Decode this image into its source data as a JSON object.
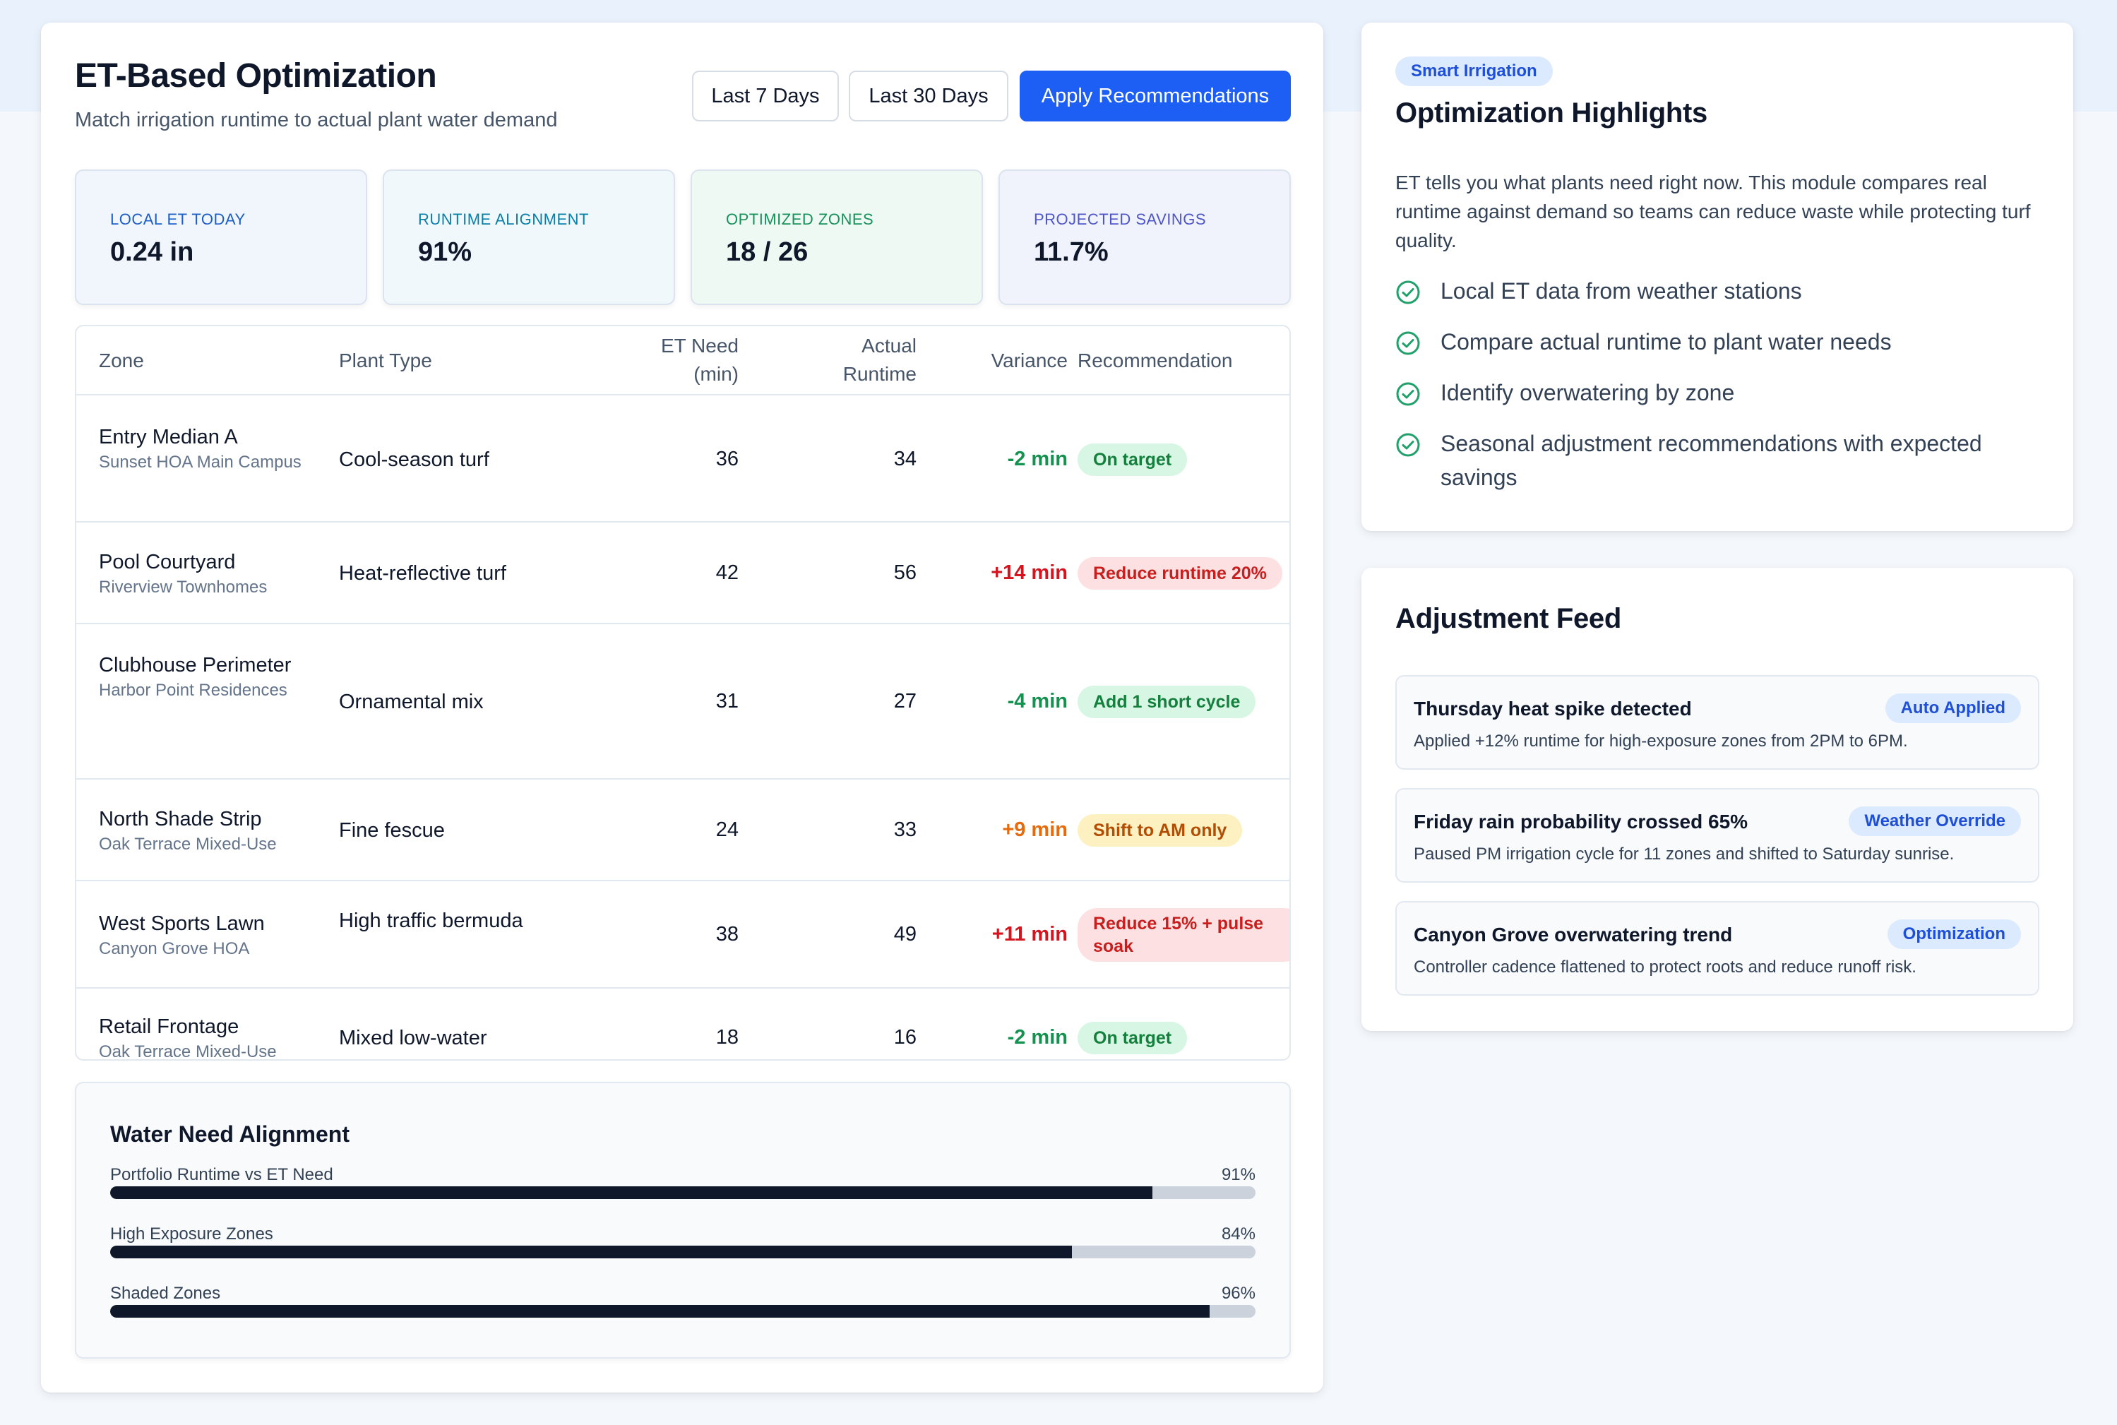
{
  "header": {
    "title": "ET-Based Optimization",
    "subtitle": "Match irrigation runtime to actual plant water demand",
    "buttons": {
      "last7": "Last 7 Days",
      "last30": "Last 30 Days",
      "apply": "Apply Recommendations"
    }
  },
  "stats": [
    {
      "label": "LOCAL ET TODAY",
      "value": "0.24 in"
    },
    {
      "label": "RUNTIME ALIGNMENT",
      "value": "91%"
    },
    {
      "label": "OPTIMIZED ZONES",
      "value": "18 / 26"
    },
    {
      "label": "PROJECTED SAVINGS",
      "value": "11.7%"
    }
  ],
  "table": {
    "headers": {
      "zone": "Zone",
      "plant": "Plant Type",
      "et_line1": "ET Need",
      "et_line2": "(min)",
      "runtime_line1": "Actual",
      "runtime_line2": "Runtime",
      "variance": "Variance",
      "recommendation": "Recommendation"
    },
    "rows": [
      {
        "zone": "Entry Median A",
        "site": "Sunset HOA Main Campus",
        "plant": "Cool-season turf",
        "et": "36",
        "runtime": "34",
        "variance": "-2 min",
        "variance_tone": "green",
        "rec": "On target",
        "rec_tone": "green"
      },
      {
        "zone": "Pool Courtyard",
        "site": "Riverview Townhomes",
        "plant": "Heat-reflective turf",
        "et": "42",
        "runtime": "56",
        "variance": "+14 min",
        "variance_tone": "red",
        "rec": "Reduce runtime 20%",
        "rec_tone": "red"
      },
      {
        "zone": "Clubhouse Perimeter",
        "site": "Harbor Point Residences",
        "plant": "Ornamental mix",
        "et": "31",
        "runtime": "27",
        "variance": "-4 min",
        "variance_tone": "green",
        "rec": "Add 1 short cycle",
        "rec_tone": "green"
      },
      {
        "zone": "North Shade Strip",
        "site": "Oak Terrace Mixed-Use",
        "plant": "Fine fescue",
        "et": "24",
        "runtime": "33",
        "variance": "+9 min",
        "variance_tone": "orange",
        "rec": "Shift to AM only",
        "rec_tone": "amber"
      },
      {
        "zone": "West Sports Lawn",
        "site": "Canyon Grove HOA",
        "plant": "High traffic bermuda",
        "et": "38",
        "runtime": "49",
        "variance": "+11 min",
        "variance_tone": "red",
        "rec": "Reduce 15% + pulse soak",
        "rec_tone": "red"
      },
      {
        "zone": "Retail Frontage",
        "site": "Oak Terrace Mixed-Use",
        "plant": "Mixed low-water",
        "et": "18",
        "runtime": "16",
        "variance": "-2 min",
        "variance_tone": "green",
        "rec": "On target",
        "rec_tone": "green"
      }
    ]
  },
  "alignment": {
    "title": "Water Need Alignment",
    "rows": [
      {
        "label": "Portfolio Runtime vs ET Need",
        "value": "91%",
        "fraction": 0.91
      },
      {
        "label": "High Exposure Zones",
        "value": "84%",
        "fraction": 0.84
      },
      {
        "label": "Shaded Zones",
        "value": "96%",
        "fraction": 0.96
      }
    ]
  },
  "highlights": {
    "chip": "Smart Irrigation",
    "title": "Optimization Highlights",
    "text": "ET tells you what plants need right now. This module compares real runtime against demand so teams can reduce waste while protecting turf quality.",
    "items": [
      "Local ET data from weather stations",
      "Compare actual runtime to plant water needs",
      "Identify overwatering by zone",
      "Seasonal adjustment recommendations with expected savings"
    ]
  },
  "feed": {
    "title": "Adjustment Feed",
    "items": [
      {
        "title": "Thursday heat spike detected",
        "tag": "Auto Applied",
        "body": "Applied +12% runtime for high-exposure zones from 2PM to 6PM."
      },
      {
        "title": "Friday rain probability crossed 65%",
        "tag": "Weather Override",
        "body": "Paused PM irrigation cycle for 11 zones and shifted to Saturday sunrise."
      },
      {
        "title": "Canyon Grove overwatering trend",
        "tag": "Optimization",
        "body": "Controller cadence flattened to protect roots and reduce runoff risk."
      }
    ]
  },
  "icons": {
    "check": "check-circle-icon"
  },
  "colors": {
    "primary": "#1d5ff5",
    "positive": "#15924f",
    "negative": "#d4141e",
    "warning": "#e56b0c",
    "bar": "#0f172a"
  }
}
